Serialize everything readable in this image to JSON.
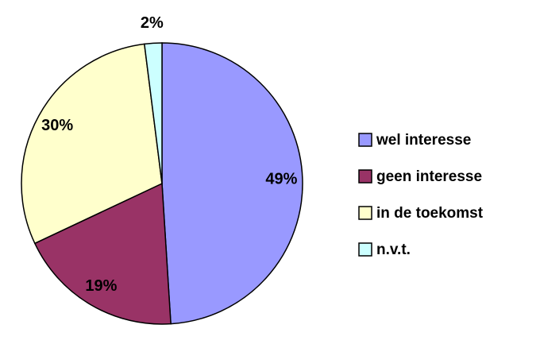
{
  "chart_data": {
    "type": "pie",
    "categories": [
      "wel interesse",
      "geen interesse",
      "in de toekomst",
      "n.v.t."
    ],
    "values": [
      49,
      19,
      30,
      2
    ],
    "value_labels": [
      "49%",
      "19%",
      "30%",
      "2%"
    ],
    "colors": [
      "#9999ff",
      "#993366",
      "#ffffcc",
      "#ccffff"
    ],
    "legend": "right"
  }
}
